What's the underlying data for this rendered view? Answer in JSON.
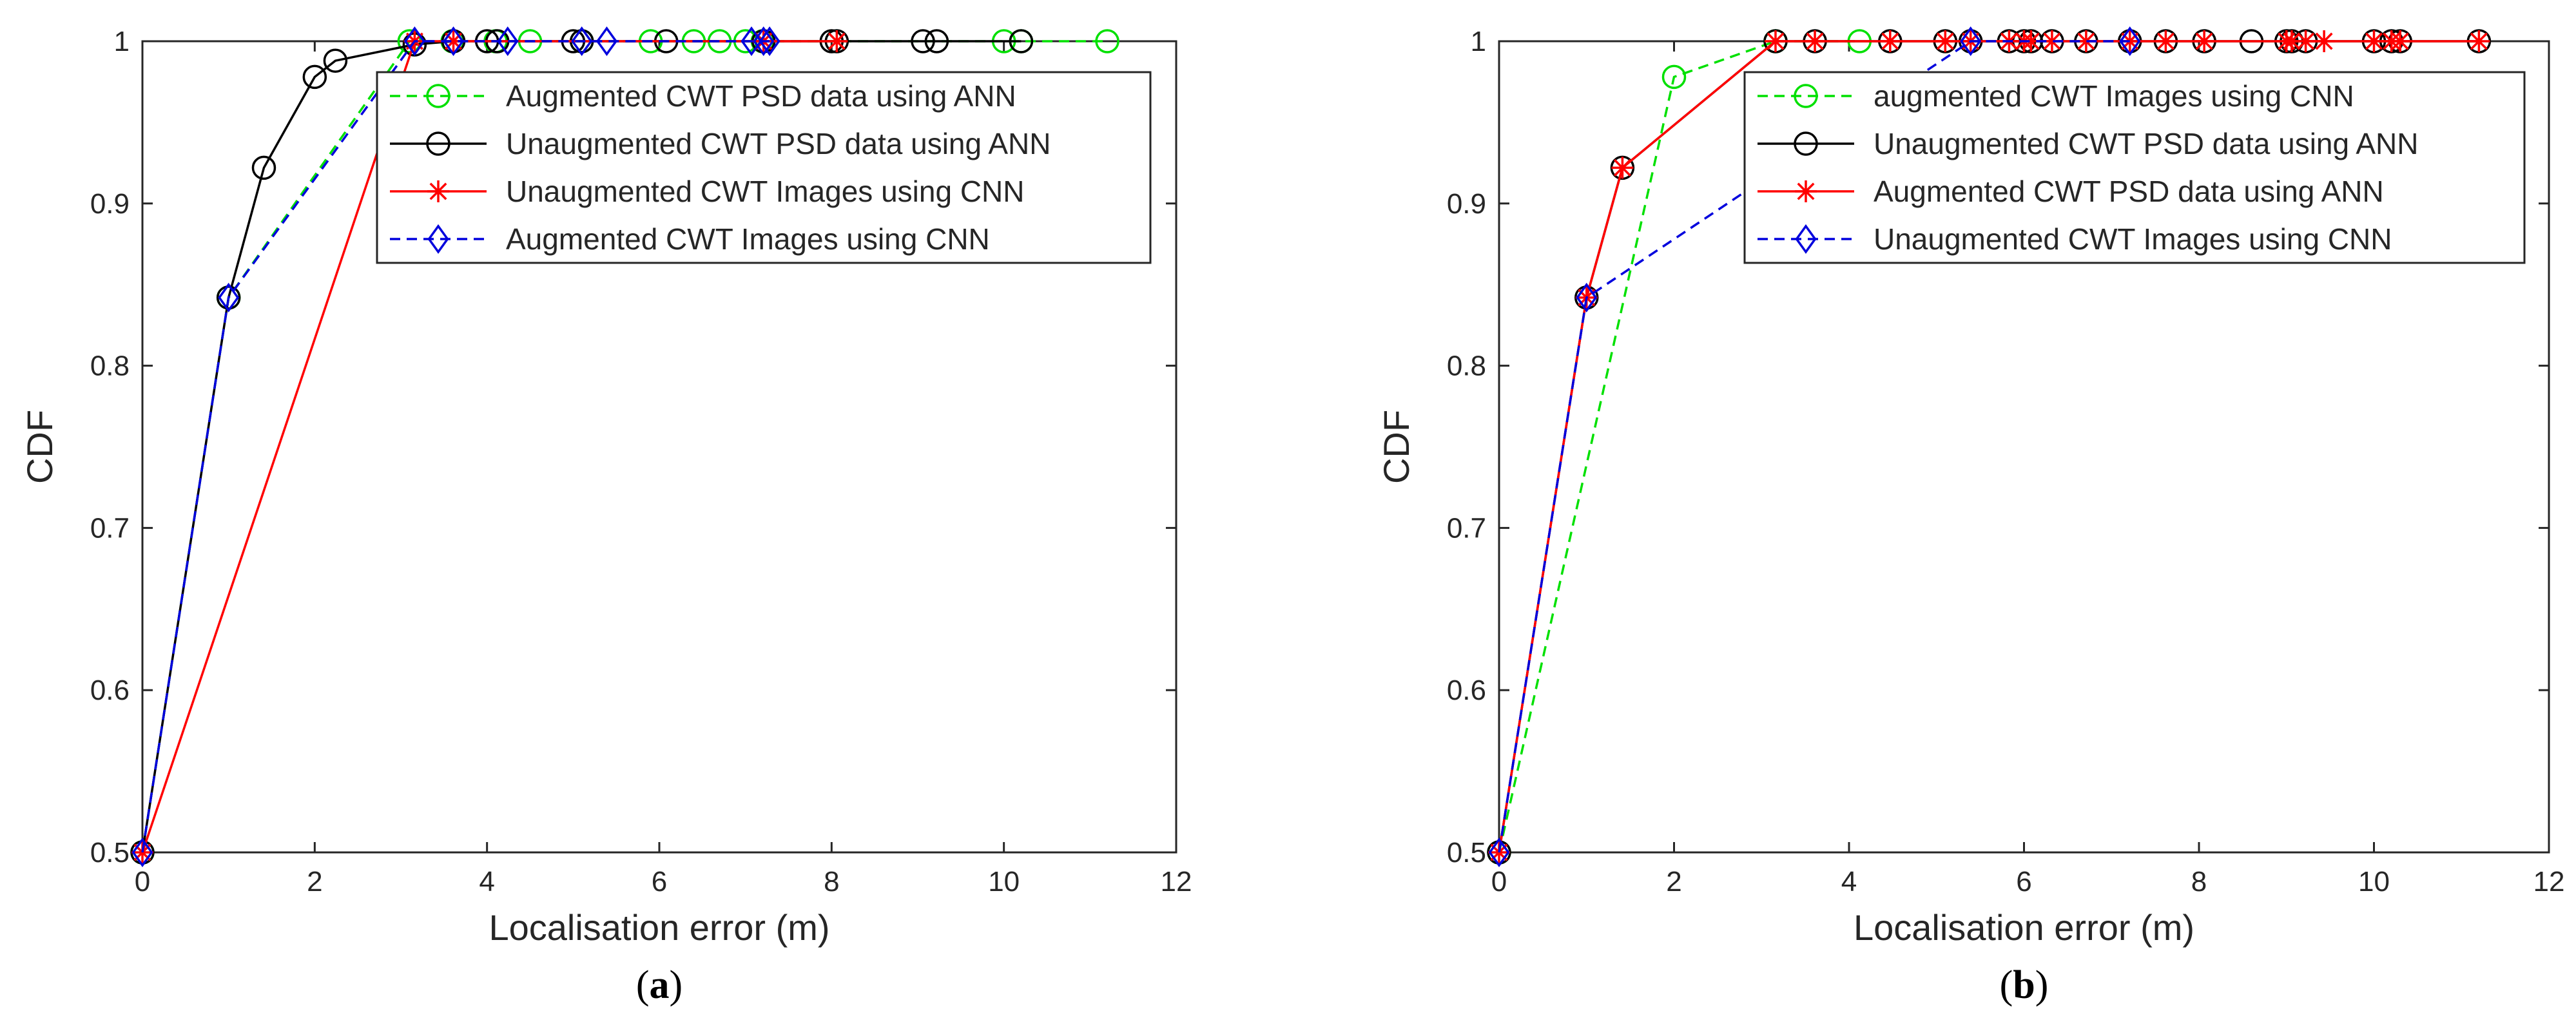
{
  "chart_data": [
    {
      "type": "line",
      "panel_label": "a",
      "title": "",
      "xlabel": "Localisation error (m)",
      "ylabel": "CDF",
      "xlim": [
        0,
        12
      ],
      "ylim": [
        0.5,
        1
      ],
      "xticks": [
        0,
        2,
        4,
        6,
        8,
        10,
        12
      ],
      "yticks": [
        0.5,
        0.6,
        0.7,
        0.8,
        0.9,
        1
      ],
      "grid": false,
      "legend_position": "top-right",
      "series": [
        {
          "name": "Augmented CWT PSD data using ANN",
          "color": "#00e000",
          "line_style": "dashed",
          "marker": "circle",
          "x": [
            0,
            1,
            3.1,
            3.6,
            4.1,
            4.5,
            5.1,
            5.9,
            6.4,
            6.7,
            7.0,
            7.2,
            10.0,
            10.2,
            11.2
          ],
          "y": [
            0.5,
            0.842,
            1,
            1,
            1,
            1,
            1,
            1,
            1,
            1,
            1,
            1,
            1,
            1,
            1
          ]
        },
        {
          "name": "Unaugmented CWT PSD data using ANN",
          "color": "#000000",
          "line_style": "solid",
          "marker": "circle",
          "x": [
            0,
            1,
            1.41,
            2,
            2.24,
            3.16,
            3.61,
            4.0,
            4.12,
            5.0,
            5.1,
            6.08,
            7.21,
            8.0,
            8.06,
            9.06,
            9.22,
            10.2
          ],
          "y": [
            0.5,
            0.842,
            0.922,
            0.978,
            0.988,
            0.998,
            1,
            1,
            1,
            1,
            1,
            1,
            1,
            1,
            1,
            1,
            1,
            1
          ]
        },
        {
          "name": "Unaugmented CWT Images using CNN",
          "color": "#ff0000",
          "line_style": "solid",
          "marker": "asterisk",
          "x": [
            0,
            3.16,
            3.61,
            7.21,
            8.06
          ],
          "y": [
            0.5,
            1,
            1,
            1,
            1
          ]
        },
        {
          "name": "Augmented CWT Images using CNN",
          "color": "#0000dd",
          "line_style": "dashed",
          "marker": "diamond",
          "x": [
            0,
            1,
            3.16,
            3.61,
            4.24,
            5.1,
            5.39,
            7.07,
            7.21,
            7.28
          ],
          "y": [
            0.5,
            0.842,
            1,
            1,
            1,
            1,
            1,
            1,
            1,
            1
          ]
        }
      ]
    },
    {
      "type": "line",
      "panel_label": "b",
      "title": "",
      "xlabel": "Localisation error (m)",
      "ylabel": "CDF",
      "xlim": [
        0,
        12
      ],
      "ylim": [
        0.5,
        1
      ],
      "xticks": [
        0,
        2,
        4,
        6,
        8,
        10,
        12
      ],
      "yticks": [
        0.5,
        0.6,
        0.7,
        0.8,
        0.9,
        1
      ],
      "grid": false,
      "legend_position": "top-right",
      "series": [
        {
          "name": "augmented CWT Images using CNN",
          "color": "#00e000",
          "line_style": "dashed",
          "marker": "circle",
          "x": [
            0,
            2,
            3.16,
            4.12
          ],
          "y": [
            0.5,
            0.978,
            1,
            1
          ]
        },
        {
          "name": "Unaugmented CWT PSD data using ANN",
          "color": "#000000",
          "line_style": "solid",
          "marker": "circle",
          "x": [
            0,
            1,
            1.41,
            3.16,
            3.61,
            4.47,
            5.1,
            5.39,
            5.83,
            6.0,
            6.08,
            6.32,
            6.71,
            7.21,
            7.62,
            8.06,
            8.6,
            9.0,
            9.06,
            9.22,
            10.0,
            10.2,
            10.3,
            11.2
          ],
          "y": [
            0.5,
            0.842,
            0.922,
            1,
            1,
            1,
            1,
            1,
            1,
            1,
            1,
            1,
            1,
            1,
            1,
            1,
            1,
            1,
            1,
            1,
            1,
            1,
            1,
            1
          ]
        },
        {
          "name": "Augmented CWT PSD data using ANN",
          "color": "#ff0000",
          "line_style": "solid",
          "marker": "asterisk",
          "x": [
            0,
            1,
            1.41,
            3.16,
            3.61,
            4.47,
            5.1,
            5.39,
            5.83,
            6.0,
            6.08,
            6.32,
            6.71,
            7.21,
            7.62,
            8.06,
            9.0,
            9.06,
            9.22,
            9.43,
            10.0,
            10.2,
            10.3,
            11.2
          ],
          "y": [
            0.5,
            0.842,
            0.922,
            1,
            1,
            1,
            1,
            1,
            1,
            1,
            1,
            1,
            1,
            1,
            1,
            1,
            1,
            1,
            1,
            1,
            1,
            1,
            1,
            1
          ]
        },
        {
          "name": "Unaugmented CWT Images using CNN",
          "color": "#0000dd",
          "line_style": "dashed",
          "marker": "diamond",
          "x": [
            0,
            1,
            5.39,
            7.21
          ],
          "y": [
            0.5,
            0.842,
            1,
            1
          ]
        }
      ]
    }
  ]
}
